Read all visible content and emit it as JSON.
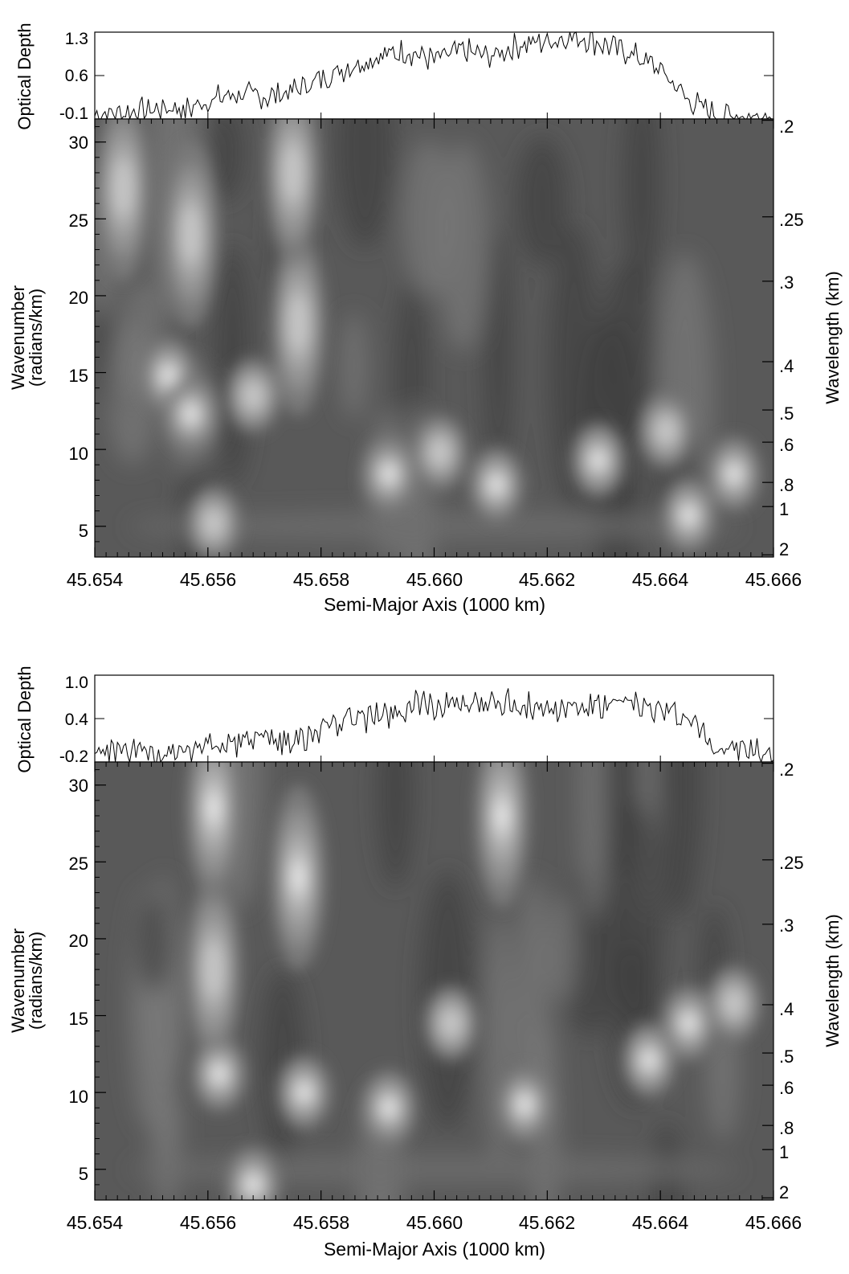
{
  "chart_data": [
    {
      "type": "line",
      "panel": "top",
      "ylabel": "Optical Depth",
      "ylim": [
        -0.1,
        1.3
      ],
      "yticks": [
        "1.3",
        "0.6",
        "-0.1"
      ],
      "xlim": [
        45.654,
        45.666
      ],
      "x": [
        45.654,
        45.6545,
        45.655,
        45.6555,
        45.656,
        45.6565,
        45.657,
        45.6575,
        45.658,
        45.6585,
        45.659,
        45.6595,
        45.66,
        45.6605,
        45.661,
        45.6615,
        45.662,
        45.6625,
        45.663,
        45.6635,
        45.664,
        45.6645,
        45.665,
        45.6555,
        45.666
      ],
      "y": [
        -0.05,
        0.0,
        0.05,
        0.1,
        0.2,
        0.3,
        0.25,
        0.35,
        0.55,
        0.75,
        0.9,
        1.0,
        0.85,
        1.0,
        0.9,
        1.1,
        1.15,
        1.25,
        1.1,
        0.95,
        0.7,
        0.2,
        -0.05,
        0.0,
        -0.05
      ]
    },
    {
      "type": "heatmap",
      "panel": "top",
      "xlabel": "Semi-Major Axis (1000 km)",
      "ylabel": "Wavenumber",
      "ylabel_sub": "(radians/km)",
      "ylabel_right": "Wavelength (km)",
      "xlim": [
        45.654,
        45.666
      ],
      "ylim": [
        3,
        31.5
      ],
      "xticks": [
        "45.654",
        "45.656",
        "45.658",
        "45.660",
        "45.662",
        "45.664",
        "45.666"
      ],
      "yticks": [
        "5",
        "10",
        "15",
        "20",
        "25",
        "30"
      ],
      "right_ticks": [
        ".2",
        ".25",
        ".3",
        ".4",
        ".5",
        ".6",
        ".8",
        "1",
        "2"
      ],
      "peaks": [
        {
          "x": 45.6545,
          "y": 27,
          "v": 0.7
        },
        {
          "x": 45.6553,
          "y": 14.8,
          "v": 0.85
        },
        {
          "x": 45.6557,
          "y": 12.3,
          "v": 0.95
        },
        {
          "x": 45.6557,
          "y": 24,
          "v": 0.75
        },
        {
          "x": 45.6561,
          "y": 5.2,
          "v": 0.8
        },
        {
          "x": 45.6568,
          "y": 13.5,
          "v": 0.8
        },
        {
          "x": 45.6576,
          "y": 18.2,
          "v": 0.8
        },
        {
          "x": 45.6575,
          "y": 28,
          "v": 0.8
        },
        {
          "x": 45.6592,
          "y": 8.4,
          "v": 0.9
        },
        {
          "x": 45.6601,
          "y": 9.8,
          "v": 0.8
        },
        {
          "x": 45.6611,
          "y": 7.7,
          "v": 0.85
        },
        {
          "x": 45.6629,
          "y": 9.3,
          "v": 0.9
        },
        {
          "x": 45.6641,
          "y": 11.2,
          "v": 0.8
        },
        {
          "x": 45.6645,
          "y": 5.7,
          "v": 0.9
        },
        {
          "x": 45.6653,
          "y": 8.4,
          "v": 0.85
        }
      ]
    },
    {
      "type": "line",
      "panel": "bottom",
      "ylabel": "Optical Depth",
      "ylim": [
        -0.2,
        1.0
      ],
      "yticks": [
        "1.0",
        "0.4",
        "-0.2"
      ],
      "xlim": [
        45.654,
        45.666
      ],
      "x": [
        45.654,
        45.6545,
        45.655,
        45.6555,
        45.656,
        45.6565,
        45.657,
        45.6575,
        45.658,
        45.6585,
        45.659,
        45.6595,
        45.66,
        45.6605,
        45.661,
        45.6615,
        45.662,
        45.6625,
        45.663,
        45.6635,
        45.664,
        45.6645,
        45.665,
        45.6555,
        45.666
      ],
      "y": [
        -0.1,
        -0.05,
        -0.1,
        0.0,
        0.05,
        0.05,
        0.1,
        0.1,
        0.2,
        0.4,
        0.45,
        0.55,
        0.6,
        0.55,
        0.65,
        0.6,
        0.55,
        0.55,
        0.55,
        0.6,
        0.5,
        0.4,
        0.0,
        -0.05,
        -0.1
      ]
    },
    {
      "type": "heatmap",
      "panel": "bottom",
      "xlabel": "Semi-Major Axis (1000 km)",
      "ylabel": "Wavenumber",
      "ylabel_sub": "(radians/km)",
      "ylabel_right": "Wavelength (km)",
      "xlim": [
        45.654,
        45.666
      ],
      "ylim": [
        3,
        31.5
      ],
      "xticks": [
        "45.654",
        "45.656",
        "45.658",
        "45.660",
        "45.662",
        "45.664",
        "45.666"
      ],
      "yticks": [
        "5",
        "10",
        "15",
        "20",
        "25",
        "30"
      ],
      "right_ticks": [
        ".2",
        ".25",
        ".3",
        ".4",
        ".5",
        ".6",
        ".8",
        "1",
        "2"
      ],
      "peaks": [
        {
          "x": 45.6561,
          "y": 28.5,
          "v": 0.9
        },
        {
          "x": 45.6576,
          "y": 24,
          "v": 0.9
        },
        {
          "x": 45.6561,
          "y": 18,
          "v": 0.8
        },
        {
          "x": 45.6562,
          "y": 11.2,
          "v": 0.85
        },
        {
          "x": 45.6577,
          "y": 10,
          "v": 0.9
        },
        {
          "x": 45.6568,
          "y": 4,
          "v": 0.9
        },
        {
          "x": 45.6592,
          "y": 9.0,
          "v": 0.85
        },
        {
          "x": 45.6603,
          "y": 14.5,
          "v": 0.8
        },
        {
          "x": 45.6612,
          "y": 28,
          "v": 0.9
        },
        {
          "x": 45.6616,
          "y": 9.2,
          "v": 0.9
        },
        {
          "x": 45.6638,
          "y": 12.1,
          "v": 0.95
        },
        {
          "x": 45.6645,
          "y": 14.5,
          "v": 0.85
        },
        {
          "x": 45.6653,
          "y": 15.8,
          "v": 0.8
        }
      ]
    }
  ]
}
